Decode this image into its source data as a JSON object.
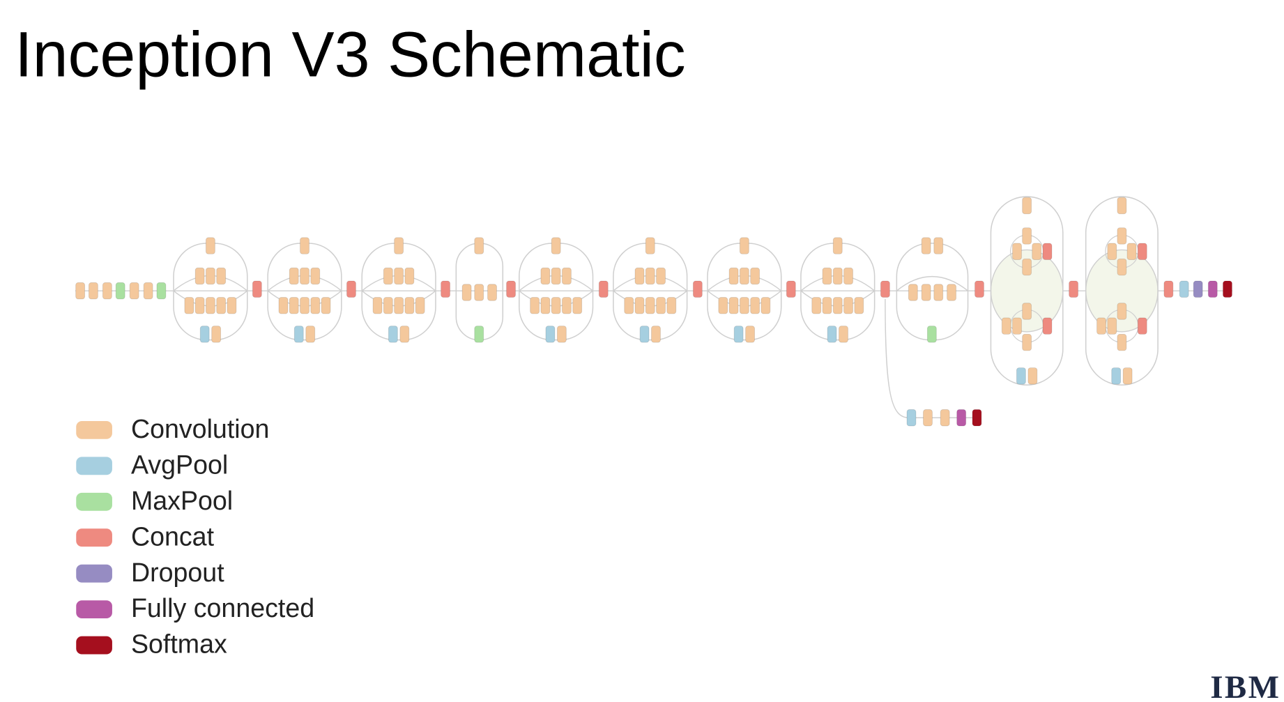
{
  "title": "Inception V3 Schematic",
  "legend": {
    "items": [
      {
        "label": "Convolution",
        "color": "#f4c89c"
      },
      {
        "label": "AvgPool",
        "color": "#a6cfe0"
      },
      {
        "label": "MaxPool",
        "color": "#a9e0a0"
      },
      {
        "label": "Concat",
        "color": "#ee8a80"
      },
      {
        "label": "Dropout",
        "color": "#968cc2"
      },
      {
        "label": "Fully connected",
        "color": "#b85aa6"
      },
      {
        "label": "Softmax",
        "color": "#a50f1e"
      }
    ]
  },
  "logo": "IBM"
}
